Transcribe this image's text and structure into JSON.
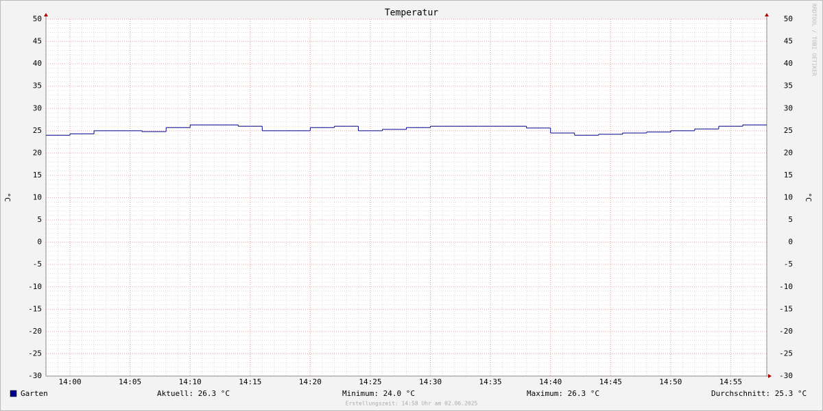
{
  "chart_data": {
    "type": "step",
    "title": "Temperatur",
    "ylabel": "°C",
    "watermark": "RRDTOOL / TOBI OETIKER",
    "x": [
      "13:58",
      "14:00",
      "14:02",
      "14:04",
      "14:06",
      "14:08",
      "14:10",
      "14:12",
      "14:14",
      "14:16",
      "14:18",
      "14:20",
      "14:22",
      "14:24",
      "14:26",
      "14:28",
      "14:30",
      "14:32",
      "14:34",
      "14:36",
      "14:38",
      "14:40",
      "14:42",
      "14:44",
      "14:46",
      "14:48",
      "14:50",
      "14:52",
      "14:54",
      "14:56"
    ],
    "series": [
      {
        "name": "Garten",
        "color": "#00008b",
        "values": [
          24.0,
          24.3,
          25.0,
          25.0,
          24.8,
          25.7,
          26.3,
          26.3,
          26.0,
          25.0,
          25.0,
          25.7,
          26.0,
          25.0,
          25.3,
          25.7,
          26.0,
          26.0,
          26.0,
          26.0,
          25.6,
          24.5,
          24.0,
          24.2,
          24.5,
          24.7,
          25.0,
          25.4,
          26.0,
          26.3
        ]
      }
    ],
    "xlim": [
      "13:58",
      "14:58"
    ],
    "xticks": [
      "14:00",
      "14:05",
      "14:10",
      "14:15",
      "14:20",
      "14:25",
      "14:30",
      "14:35",
      "14:40",
      "14:45",
      "14:50",
      "14:55"
    ],
    "ylim": [
      -30,
      50
    ],
    "yticks": [
      -30,
      -25,
      -20,
      -15,
      -10,
      -5,
      0,
      5,
      10,
      15,
      20,
      25,
      30,
      35,
      40,
      45,
      50
    ],
    "grid": true,
    "stats": [
      "Aktuell: 26.3 °C",
      "Minimum: 24.0 °C",
      "Maximum: 26.3 °C",
      "Durchschnitt: 25.3 °C"
    ],
    "footer": "Erstellungszeit: 14:58 Uhr am 02.06.2025"
  }
}
